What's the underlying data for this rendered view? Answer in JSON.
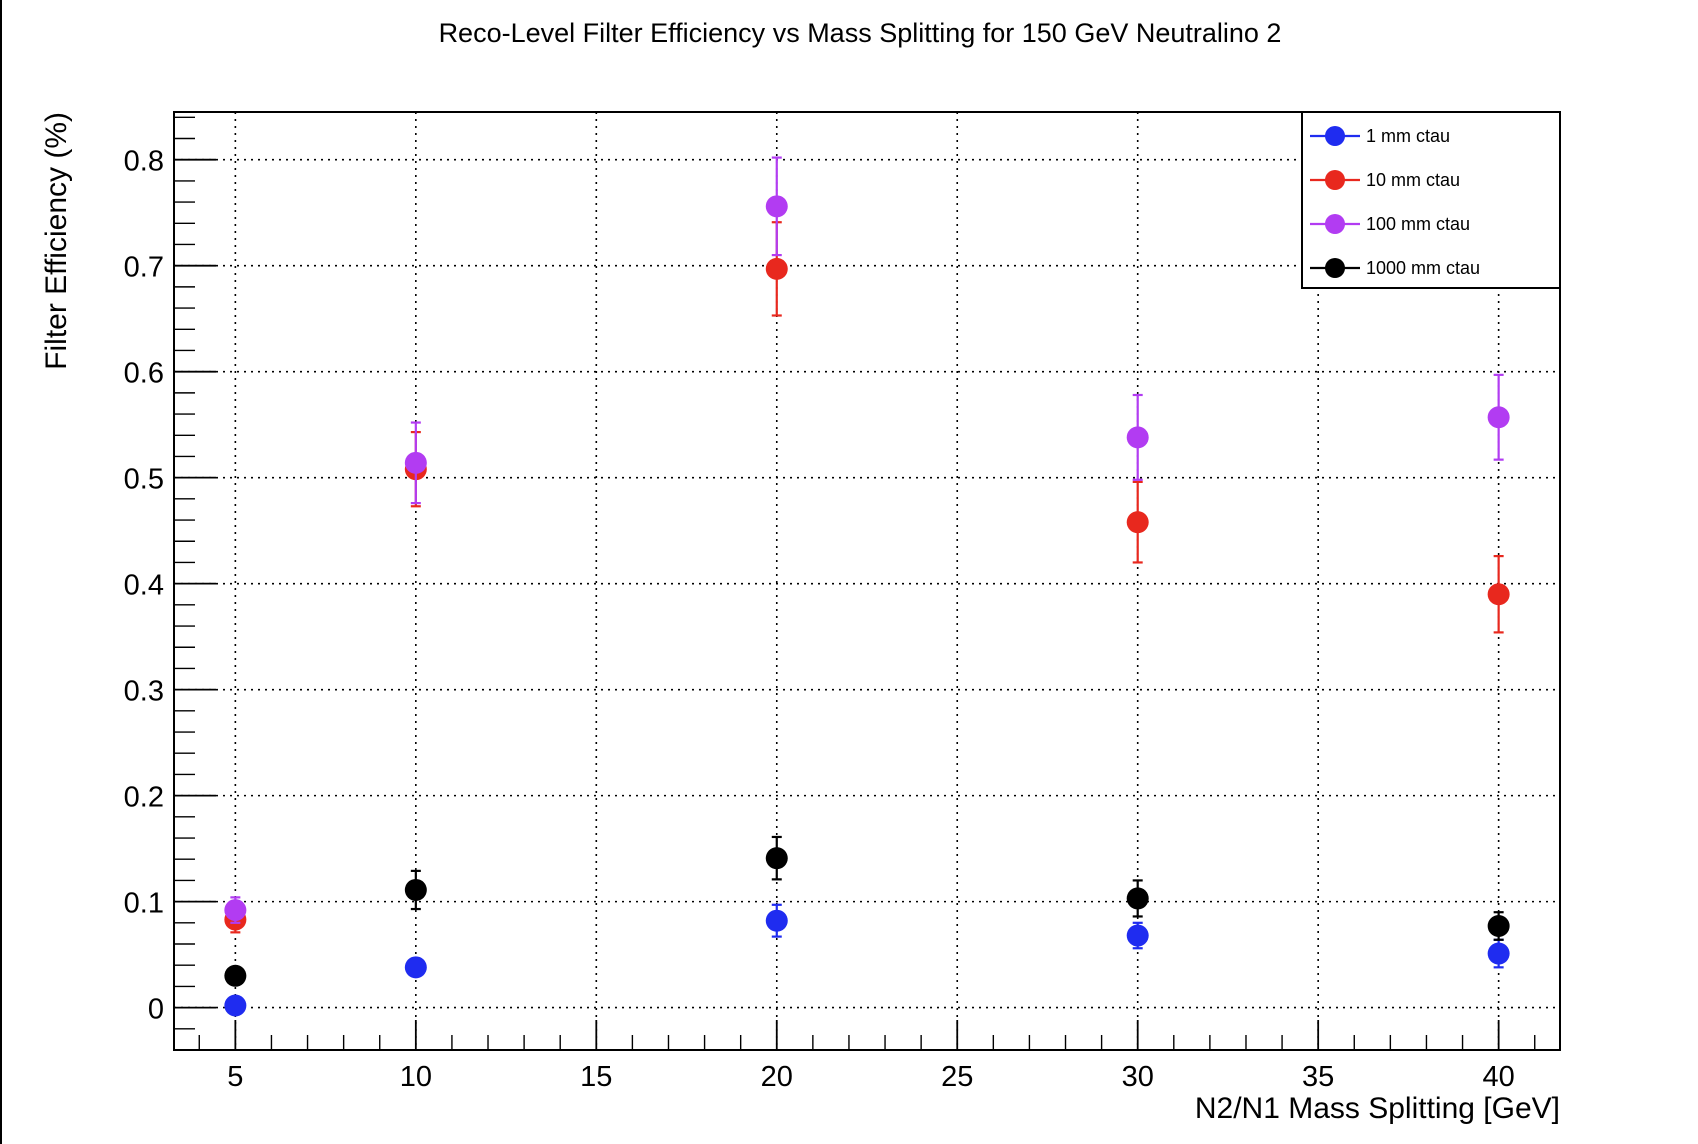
{
  "colors": {
    "background": "#ffffff",
    "axis": "#000000",
    "grid": "#000000",
    "series_blue": "#1f2cf0",
    "series_red": "#e8281e",
    "series_purple": "#b23cf2",
    "series_black": "#000000"
  },
  "chart_data": {
    "type": "scatter",
    "title": "Reco-Level Filter Efficiency vs Mass Splitting for 150 GeV Neutralino 2",
    "xlabel": "N2/N1 Mass Splitting [GeV]",
    "ylabel": "Filter Efficiency (%)",
    "xlim": [
      3.3,
      41.7
    ],
    "ylim": [
      -0.04,
      0.845
    ],
    "x_ticks": [
      5,
      10,
      15,
      20,
      25,
      30,
      35,
      40
    ],
    "x_tick_labels": [
      "5",
      "10",
      "15",
      "20",
      "25",
      "30",
      "35",
      "40"
    ],
    "y_ticks": [
      0,
      0.1,
      0.2,
      0.3,
      0.4,
      0.5,
      0.6,
      0.7,
      0.8
    ],
    "y_tick_labels": [
      "0",
      "0.1",
      "0.2",
      "0.3",
      "0.4",
      "0.5",
      "0.6",
      "0.7",
      "0.8"
    ],
    "grid": true,
    "legend_position": "top-right",
    "x": [
      5,
      10,
      20,
      30,
      40
    ],
    "series": [
      {
        "name": "1 mm ctau",
        "color": "#1f2cf0",
        "values": [
          0.002,
          0.038,
          0.082,
          0.068,
          0.051
        ],
        "errors": [
          0.001,
          0.005,
          0.015,
          0.012,
          0.013
        ]
      },
      {
        "name": "10 mm ctau",
        "color": "#e8281e",
        "values": [
          0.083,
          0.508,
          0.697,
          0.458,
          0.39
        ],
        "errors": [
          0.012,
          0.035,
          0.044,
          0.038,
          0.036
        ]
      },
      {
        "name": "100 mm ctau",
        "color": "#b23cf2",
        "values": [
          0.092,
          0.514,
          0.756,
          0.538,
          0.557
        ],
        "errors": [
          0.012,
          0.038,
          0.046,
          0.04,
          0.04
        ]
      },
      {
        "name": "1000 mm ctau",
        "color": "#000000",
        "values": [
          0.03,
          0.111,
          0.141,
          0.103,
          0.077
        ],
        "errors": [
          0.004,
          0.018,
          0.02,
          0.017,
          0.013
        ]
      }
    ]
  }
}
